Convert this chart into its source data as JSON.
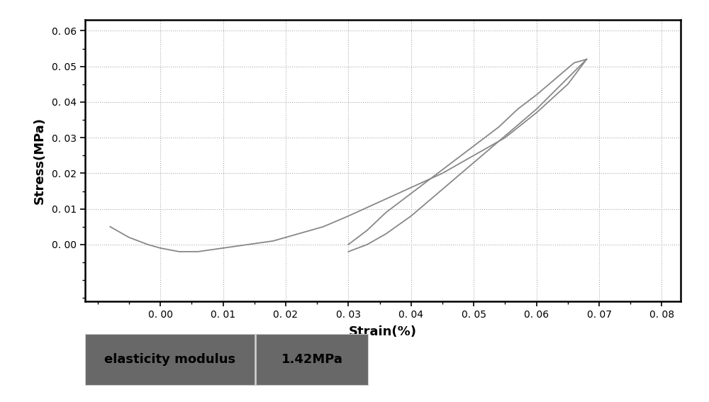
{
  "xlabel": "Strain(%)",
  "ylabel": "Stress(MPa)",
  "xlim": [
    -0.012,
    0.083
  ],
  "ylim": [
    -0.016,
    0.063
  ],
  "xticks": [
    0.0,
    0.01,
    0.02,
    0.03,
    0.04,
    0.05,
    0.06,
    0.07,
    0.08
  ],
  "xticklabels": [
    "0. 00",
    "0. 01",
    "0. 02",
    "0. 03",
    "0. 04",
    "0. 05",
    "0. 06",
    "0. 07",
    "0. 08"
  ],
  "yticks": [
    0.0,
    0.01,
    0.02,
    0.03,
    0.04,
    0.05,
    0.06
  ],
  "yticklabels": [
    "0. 00",
    "0. 01",
    "0. 02",
    "0. 03",
    "0. 04",
    "0. 05",
    "0. 06"
  ],
  "line_color": "#888888",
  "background_color": "#ffffff",
  "legend_left_text": "elasticity modulus",
  "legend_right_text": "1.42MPa",
  "legend_bg_color": "#686868",
  "legend_text_color": "#000000",
  "curve1_x": [
    -0.008,
    -0.005,
    -0.002,
    0.0,
    0.003,
    0.006,
    0.01,
    0.014,
    0.018,
    0.022,
    0.026,
    0.03,
    0.035,
    0.04,
    0.045,
    0.05,
    0.055,
    0.06,
    0.065,
    0.068
  ],
  "curve1_y": [
    0.005,
    0.002,
    0.0,
    -0.001,
    -0.002,
    -0.002,
    -0.001,
    0.0,
    0.001,
    0.003,
    0.005,
    0.008,
    0.012,
    0.016,
    0.02,
    0.025,
    0.03,
    0.037,
    0.045,
    0.052
  ],
  "curve2_x": [
    0.068,
    0.066,
    0.064,
    0.062,
    0.06,
    0.057,
    0.054,
    0.051,
    0.048,
    0.045,
    0.042,
    0.039,
    0.036,
    0.033,
    0.03
  ],
  "curve2_y": [
    0.052,
    0.051,
    0.048,
    0.045,
    0.042,
    0.038,
    0.033,
    0.029,
    0.025,
    0.021,
    0.017,
    0.013,
    0.009,
    0.004,
    0.0
  ],
  "curve3_x": [
    0.03,
    0.033,
    0.036,
    0.04,
    0.044,
    0.048,
    0.052,
    0.056,
    0.06,
    0.064,
    0.068
  ],
  "curve3_y": [
    -0.002,
    0.0,
    0.003,
    0.008,
    0.014,
    0.02,
    0.026,
    0.032,
    0.038,
    0.045,
    0.052
  ]
}
